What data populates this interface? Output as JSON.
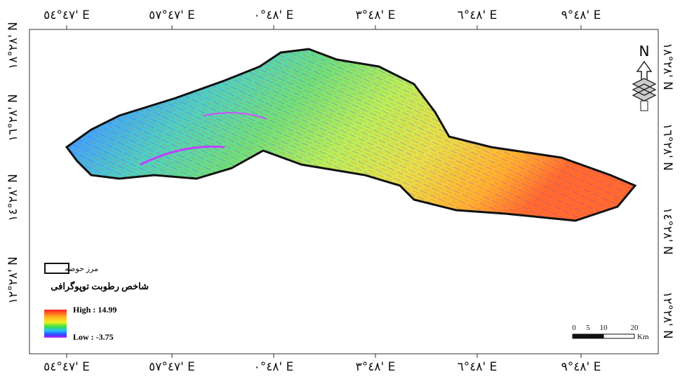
{
  "top_labels": [
    "٤٧°٥٤' E",
    "٤٧°٥٧' E",
    "٤٨°٠' E",
    "٤٨°٣' E",
    "٤٨°٦' E",
    "٤٨°٩' E"
  ],
  "bottom_labels": [
    "٤٧°٥٤' E",
    "٤٧°٥٧' E",
    "٤٨°٠' E",
    "٤٨°٣' E",
    "٤٨°٦' E",
    "٤٨°٩' E"
  ],
  "left_labels": [
    "٢٨°١٨' N",
    "٢٨°١٦' N",
    "٢٨°١٤' N",
    "٢٨°١٢' N"
  ],
  "right_labels": [
    "٢٨°١٨' N",
    "٢٨°١٦' N",
    "٢٨°١٤' N",
    "٢٨°١٢' N"
  ],
  "north": "N",
  "legend": {
    "boundary": "مرز حوضه",
    "title": "شاخص رطوبت توپوگرافی",
    "high": "High : 14.99",
    "low": "Low : -3.75"
  },
  "scale_bar": {
    "ticks": [
      "0",
      "5",
      "10",
      "20"
    ],
    "unit": "Km"
  }
}
